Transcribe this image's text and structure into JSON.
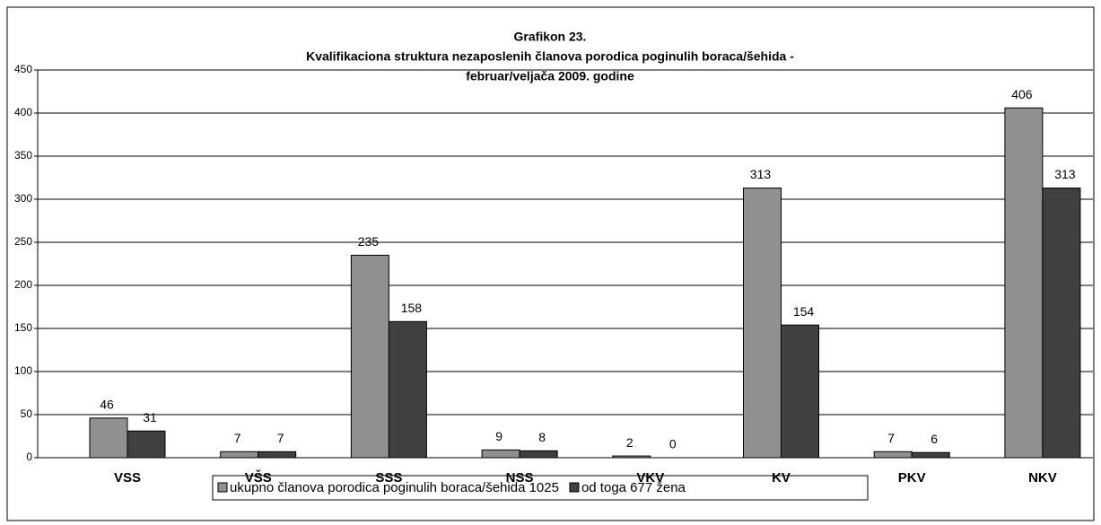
{
  "chart_data": {
    "type": "bar",
    "title": "Grafikon 23.",
    "subtitle": [
      "Kvalifikaciona struktura nezaposlenih članova porodica poginulih boraca/šehida  -",
      "februar/veljača 2009. godine"
    ],
    "categories": [
      "VSS",
      "VŠS",
      "SSS",
      "NSS",
      "VKV",
      "KV",
      "PKV",
      "NKV"
    ],
    "series": [
      {
        "name": "ukupno članova porodica poginulih boraca/šehida 1025",
        "color": "#909090",
        "values": [
          46,
          7,
          235,
          9,
          2,
          313,
          7,
          406
        ]
      },
      {
        "name": "od toga 677 žena",
        "color": "#404040",
        "values": [
          31,
          7,
          158,
          8,
          0,
          154,
          6,
          313
        ]
      }
    ],
    "ylim": [
      0,
      450
    ],
    "yticks": [
      0,
      50,
      100,
      150,
      200,
      250,
      300,
      350,
      400,
      450
    ],
    "grid": true
  }
}
